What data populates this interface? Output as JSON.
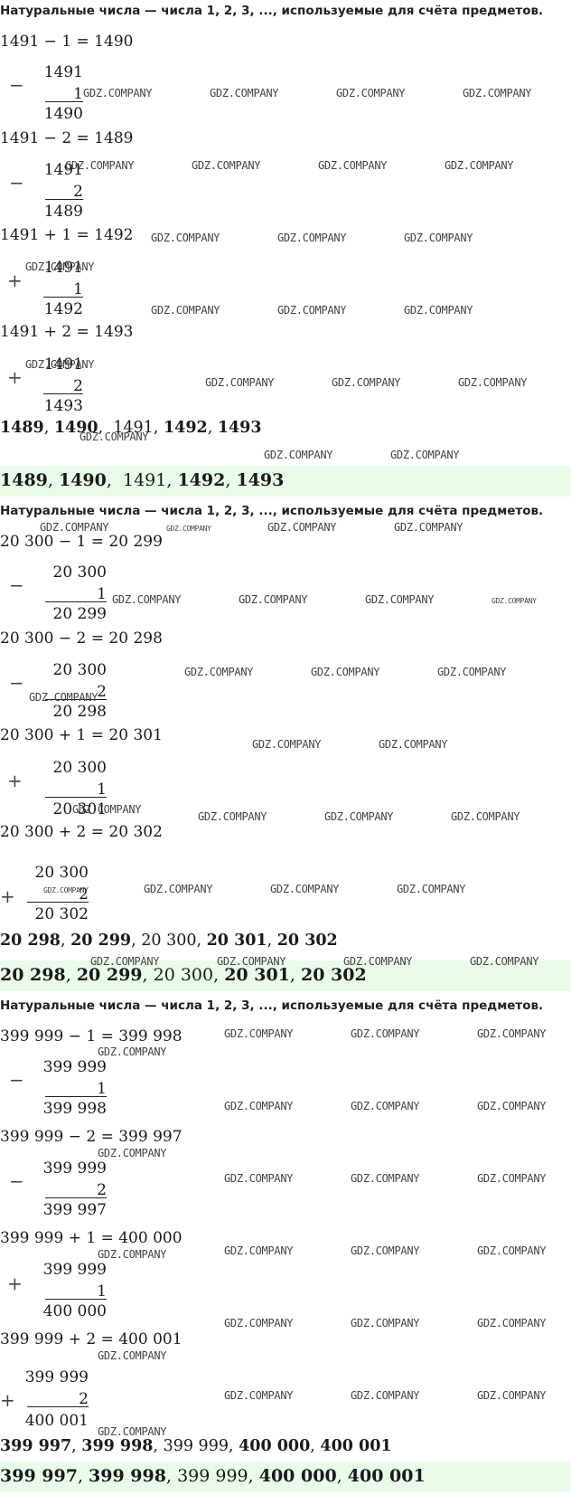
{
  "intro": "Натуральные числа — числа 1, 2, 3, ..., используемые для счёта предметов.",
  "watermark": "GDZ.COMPANY",
  "blocks": [
    {
      "operations": [
        {
          "equation": "1491 − 1 = 1490",
          "sign": "−",
          "top": "1491",
          "operand": "1",
          "result": "1490"
        },
        {
          "equation": "1491 − 2 = 1489",
          "sign": "−",
          "top": "1491",
          "operand": "2",
          "result": "1489"
        },
        {
          "equation": "1491 + 1 = 1492",
          "sign": "+",
          "top": "1491",
          "operand": "1",
          "result": "1492"
        },
        {
          "equation": "1491 + 2 = 1493",
          "sign": "+",
          "top": "1491",
          "operand": "2",
          "result": "1493"
        }
      ],
      "sequence": [
        "1489",
        "1490",
        "1491",
        "1492",
        "1493"
      ],
      "answer": [
        "1489",
        "1490",
        "1491",
        "1492",
        "1493"
      ]
    },
    {
      "operations": [
        {
          "equation": "20 300 − 1 = 20 299",
          "sign": "−",
          "top": "20 300",
          "operand": "1",
          "result": "20 299"
        },
        {
          "equation": "20 300 − 2 = 20 298",
          "sign": "−",
          "top": "20 300",
          "operand": "2",
          "result": "20 298"
        },
        {
          "equation": "20 300 + 1 = 20 301",
          "sign": "+",
          "top": "20 300",
          "operand": "1",
          "result": "20 301"
        },
        {
          "equation": "20 300 + 2 = 20 302",
          "sign": "+",
          "top": "20 300",
          "operand": "2",
          "result": "20 302"
        }
      ],
      "sequence": [
        "20 298",
        "20 299",
        "20 300",
        "20 301",
        "20 302"
      ],
      "answer": [
        "20 298",
        "20 299",
        "20 300",
        "20 301",
        "20 302"
      ]
    },
    {
      "operations": [
        {
          "equation": "399 999 − 1 = 399 998",
          "sign": "−",
          "top": "399 999",
          "operand": "1",
          "result": "399 998"
        },
        {
          "equation": "399 999 − 2 = 399 997",
          "sign": "−",
          "top": "399 999",
          "operand": "2",
          "result": "399 997"
        },
        {
          "equation": "399 999 + 1 = 400 000",
          "sign": "+",
          "top": "399 999",
          "operand": "1",
          "result": "400 000"
        },
        {
          "equation": "399 999 + 2 = 400 001",
          "sign": "+",
          "top": "399 999",
          "operand": "2",
          "result": "400 001"
        }
      ],
      "sequence": [
        "399 997",
        "399 998",
        "399 999",
        "400 000",
        "400 001"
      ],
      "answer": [
        "399 997",
        "399 998",
        "399 999",
        "400 000",
        "400 001"
      ]
    }
  ]
}
